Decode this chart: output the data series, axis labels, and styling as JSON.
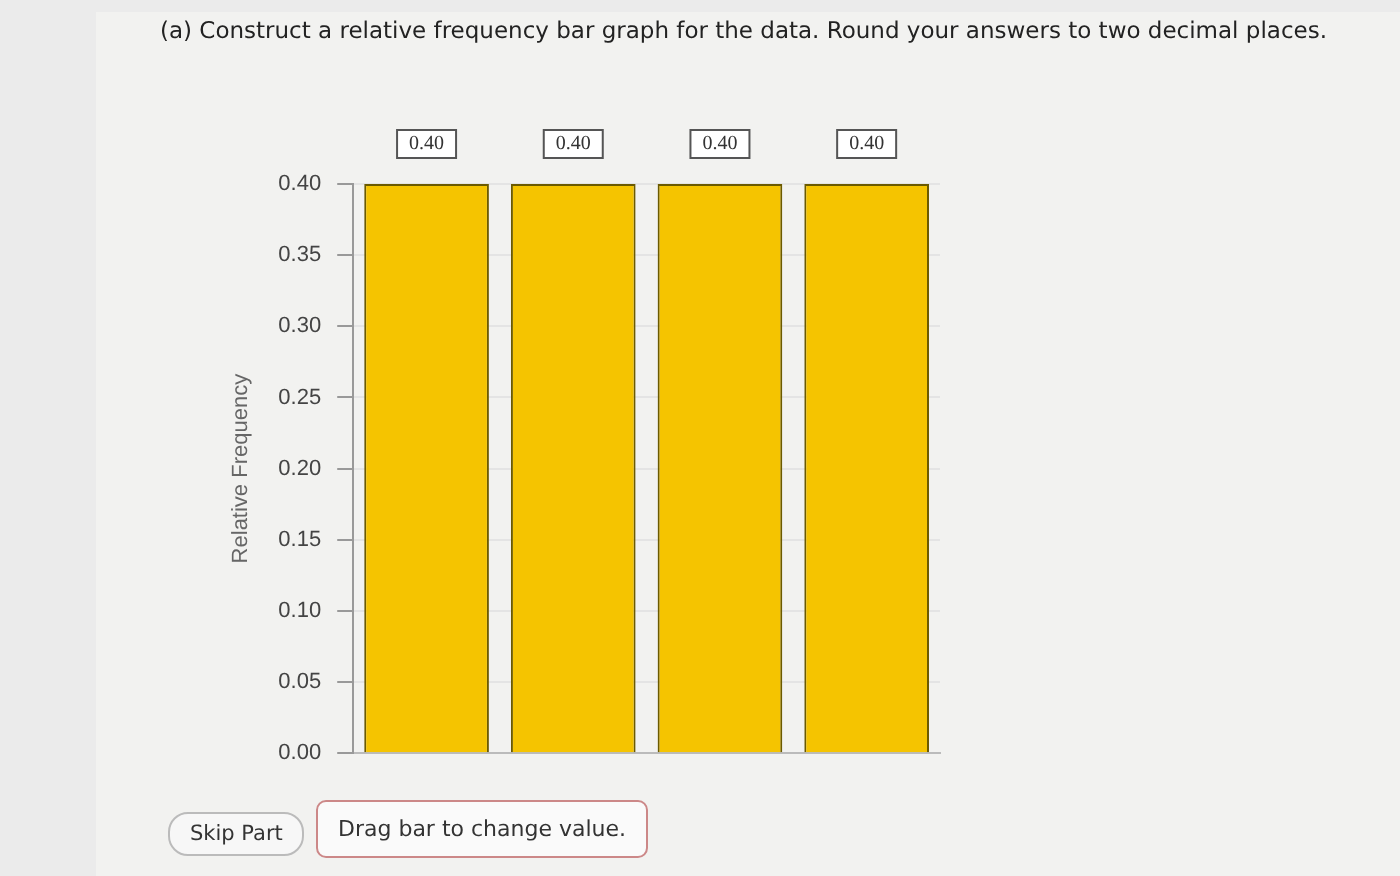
{
  "chart_data": {
    "type": "bar",
    "title": "(a) Construct a relative frequency bar graph for the data. Round your answers to two decimal places.",
    "ylabel": "Relative Frequency",
    "categories": [
      null,
      null,
      null,
      null
    ],
    "values": [
      0.4,
      0.4,
      0.4,
      0.4
    ],
    "color": "#f5c400",
    "ylim": [
      0,
      0.4
    ],
    "yticks": [
      {
        "value": 0,
        "label": "0.00"
      },
      {
        "value": 0.05,
        "label": "0.05"
      },
      {
        "value": 0.1,
        "label": "0.10"
      },
      {
        "value": 0.15,
        "label": "0.15"
      },
      {
        "value": 0.2,
        "label": "0.20"
      },
      {
        "value": 0.25,
        "label": "0.25"
      },
      {
        "value": 0.3,
        "label": "0.30"
      },
      {
        "value": 0.35,
        "label": "0.35"
      },
      {
        "value": 0.4,
        "label": "0.40"
      }
    ],
    "grid": "y",
    "value_labels": [
      "0.40",
      "0.40",
      "0.40",
      "0.40"
    ],
    "legend": false,
    "annotations": [
      "Skip Part",
      "Drag bar to change value."
    ]
  }
}
